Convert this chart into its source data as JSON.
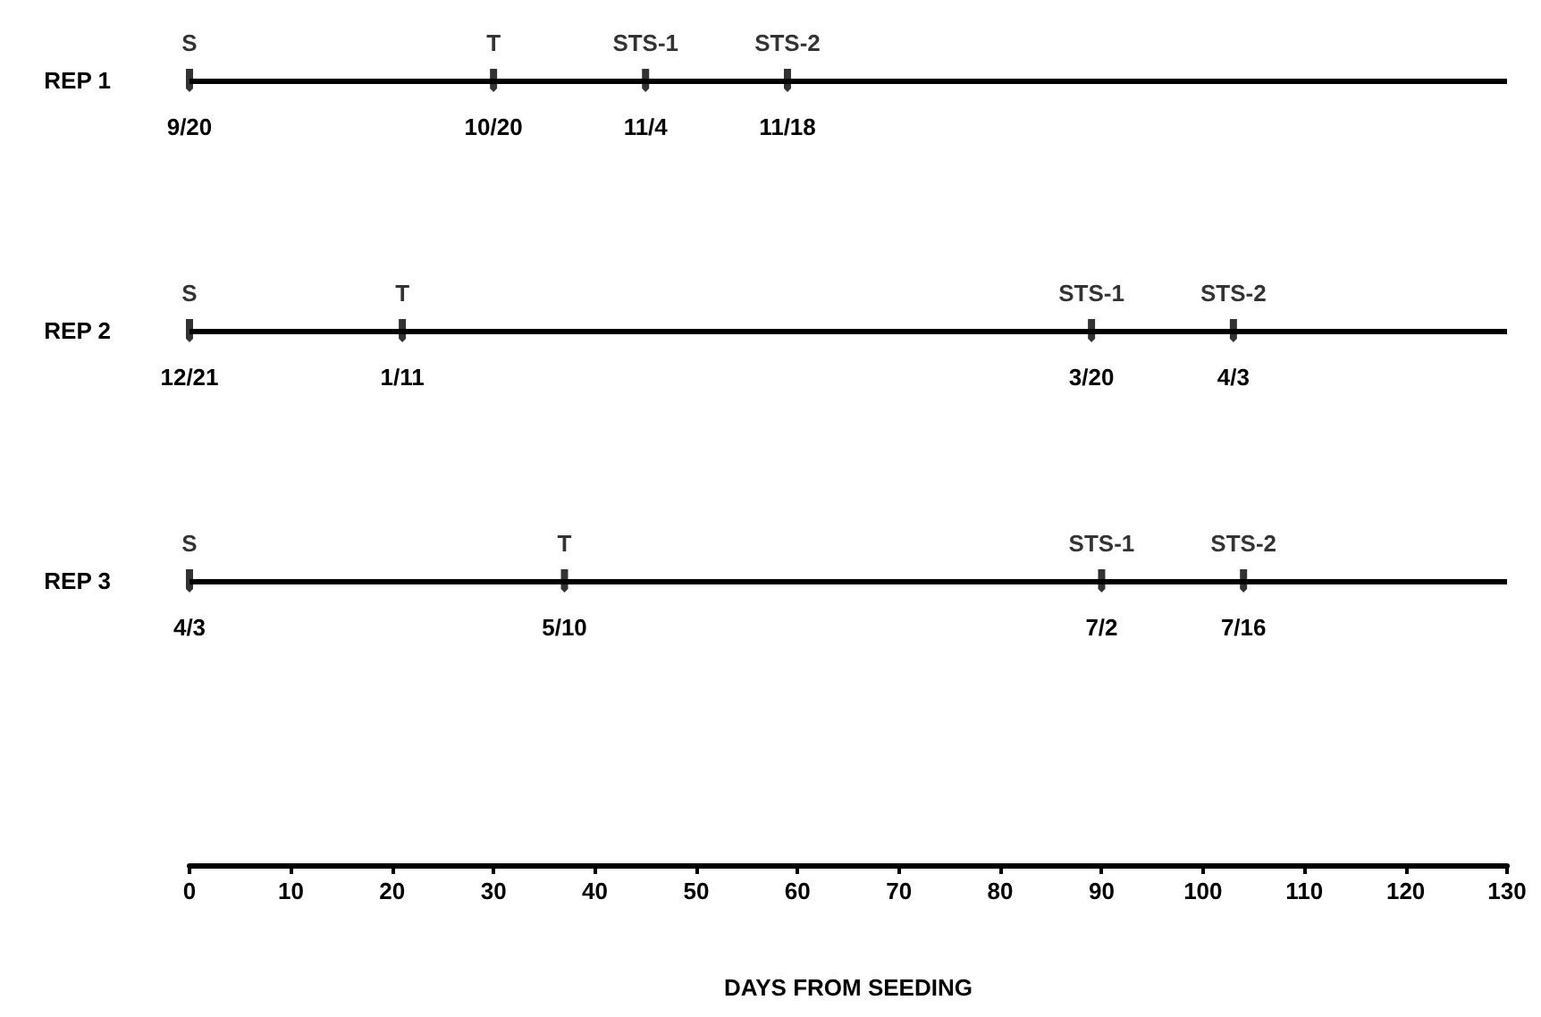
{
  "chart_data": {
    "type": "scatter",
    "orientation": "horizontal",
    "xlabel": "DAYS FROM SEEDING",
    "categories": [
      "REP 1",
      "REP 2",
      "REP 3"
    ],
    "xlim": [
      0,
      130
    ],
    "xticks": [
      0,
      10,
      20,
      30,
      40,
      50,
      60,
      70,
      80,
      90,
      100,
      110,
      120,
      130
    ],
    "grid": "y",
    "legend": false,
    "series": [
      {
        "name": "S",
        "color": "#000000",
        "values": [
          0,
          0,
          0
        ]
      },
      {
        "name": "T",
        "color": "#000000",
        "values": [
          30,
          21,
          37
        ]
      },
      {
        "name": "STS-1",
        "color": "#000000",
        "values": [
          45,
          89,
          90
        ]
      },
      {
        "name": "STS-2",
        "color": "#000000",
        "values": [
          59,
          103,
          104
        ]
      }
    ],
    "annotations": [
      {
        "text": "9/20",
        "x": 0,
        "y": "REP 1"
      },
      {
        "text": "10/20",
        "x": 30,
        "y": "REP 1"
      },
      {
        "text": "11/4",
        "x": 45,
        "y": "REP 1"
      },
      {
        "text": "11/18",
        "x": 59,
        "y": "REP 1"
      },
      {
        "text": "12/21",
        "x": 0,
        "y": "REP 2"
      },
      {
        "text": "1/11",
        "x": 21,
        "y": "REP 2"
      },
      {
        "text": "3/20",
        "x": 89,
        "y": "REP 2"
      },
      {
        "text": "4/3",
        "x": 103,
        "y": "REP 2"
      },
      {
        "text": "4/3",
        "x": 0,
        "y": "REP 3"
      },
      {
        "text": "5/10",
        "x": 37,
        "y": "REP 3"
      },
      {
        "text": "7/2",
        "x": 90,
        "y": "REP 3"
      },
      {
        "text": "7/16",
        "x": 104,
        "y": "REP 3"
      }
    ]
  }
}
